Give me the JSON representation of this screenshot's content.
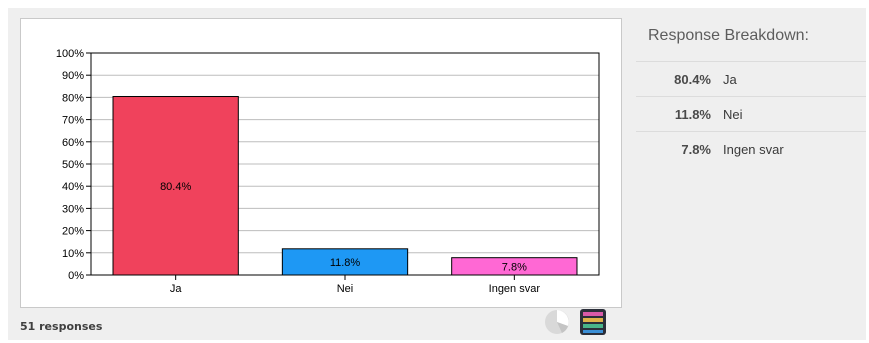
{
  "chart_data": {
    "type": "bar",
    "categories": [
      "Ja",
      "Nei",
      "Ingen svar"
    ],
    "values": [
      80.4,
      11.8,
      7.8
    ],
    "data_labels": [
      "80.4%",
      "11.8%",
      "7.8%"
    ],
    "y_ticks": [
      "0%",
      "10%",
      "20%",
      "30%",
      "40%",
      "50%",
      "60%",
      "70%",
      "80%",
      "90%",
      "100%"
    ],
    "ylim": [
      0,
      100
    ],
    "grid": true,
    "bar_colors": [
      "#f0425c",
      "#1e98f4",
      "#ff68d4"
    ]
  },
  "footer": {
    "responses": "51 responses",
    "icons": [
      "pie-chart-icon",
      "bar-chart-icon"
    ]
  },
  "breakdown": {
    "title": "Response Breakdown:",
    "items": [
      {
        "pct": "80.4%",
        "label": "Ja"
      },
      {
        "pct": "11.8%",
        "label": "Nei"
      },
      {
        "pct": "7.8%",
        "label": "Ingen svar"
      }
    ]
  }
}
